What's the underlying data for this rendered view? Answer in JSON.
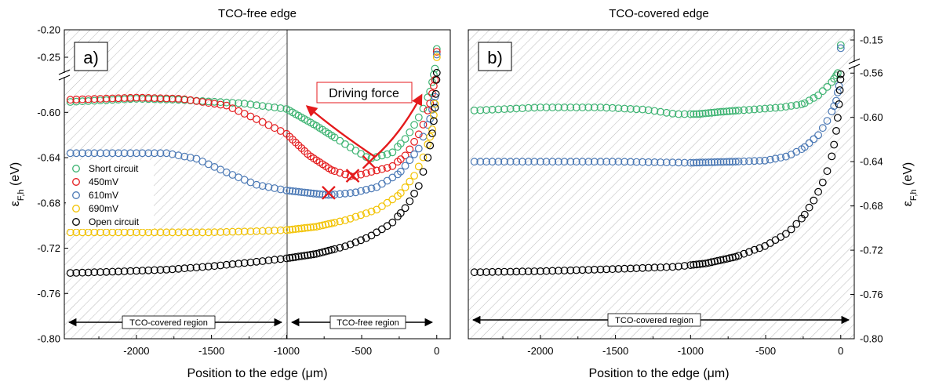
{
  "chart_data": [
    {
      "type": "scatter",
      "title": "TCO-free edge",
      "panel_label": "a)",
      "xlabel": "Position to the edge (μm)",
      "ylabel": "ε_F,h (eV)",
      "ylabel_main": "ε",
      "ylabel_sub": "F,h",
      "ylabel_unit": " (eV)",
      "xlim": [
        -2480,
        90
      ],
      "x_ticks": [
        -2000,
        -1500,
        -1000,
        -500,
        0
      ],
      "x_tick_labels": [
        "-2000",
        "-1500",
        "-1000",
        "-500",
        "0"
      ],
      "ylim": [
        -0.8,
        -0.2
      ],
      "y_axis_break": [
        -0.26,
        -0.57
      ],
      "y_ticks": [
        -0.2,
        -0.25,
        -0.6,
        -0.64,
        -0.68,
        -0.72,
        -0.76,
        -0.8
      ],
      "y_tick_labels": [
        "-0.20",
        "-0.25",
        "-0.60",
        "-0.64",
        "-0.68",
        "-0.72",
        "-0.76",
        "-0.80"
      ],
      "legend_position": "left",
      "shaded_region": "TCO-covered region",
      "regions": [
        {
          "label": "TCO-covered region",
          "from": -2480,
          "to": -1000
        },
        {
          "label": "TCO-free region",
          "from": -1000,
          "to": 0
        }
      ],
      "annotations": {
        "arrow_label": "Driving force",
        "markers": [
          {
            "x": -450,
            "y": -0.644
          },
          {
            "x": -560,
            "y": -0.656
          },
          {
            "x": -720,
            "y": -0.671
          }
        ]
      },
      "series": [
        {
          "name": "Short circuit",
          "color": "#3cb371",
          "points": [
            [
              -2480,
              -0.591
            ],
            [
              -2000,
              -0.588
            ],
            [
              -1700,
              -0.589
            ],
            [
              -1300,
              -0.592
            ],
            [
              -1000,
              -0.597
            ],
            [
              -800,
              -0.612
            ],
            [
              -600,
              -0.629
            ],
            [
              -450,
              -0.641
            ],
            [
              -300,
              -0.636
            ],
            [
              -200,
              -0.622
            ],
            [
              -100,
              -0.6
            ],
            [
              -40,
              -0.58
            ],
            [
              -10,
              -0.56
            ],
            [
              0,
              -0.235
            ]
          ]
        },
        {
          "name": "450mV",
          "color": "#e41a1c",
          "points": [
            [
              -2480,
              -0.589
            ],
            [
              -2000,
              -0.587
            ],
            [
              -1700,
              -0.588
            ],
            [
              -1400,
              -0.594
            ],
            [
              -1200,
              -0.606
            ],
            [
              -1000,
              -0.619
            ],
            [
              -850,
              -0.638
            ],
            [
              -700,
              -0.651
            ],
            [
              -560,
              -0.657
            ],
            [
              -450,
              -0.653
            ],
            [
              -300,
              -0.648
            ],
            [
              -200,
              -0.637
            ],
            [
              -100,
              -0.615
            ],
            [
              -40,
              -0.59
            ],
            [
              -10,
              -0.57
            ],
            [
              0,
              -0.24
            ]
          ]
        },
        {
          "name": "610mV",
          "color": "#4a78b5",
          "points": [
            [
              -2480,
              -0.636
            ],
            [
              -2000,
              -0.636
            ],
            [
              -1800,
              -0.636
            ],
            [
              -1600,
              -0.641
            ],
            [
              -1400,
              -0.653
            ],
            [
              -1200,
              -0.664
            ],
            [
              -1000,
              -0.669
            ],
            [
              -800,
              -0.672
            ],
            [
              -720,
              -0.673
            ],
            [
              -550,
              -0.671
            ],
            [
              -400,
              -0.666
            ],
            [
              -250,
              -0.654
            ],
            [
              -120,
              -0.632
            ],
            [
              -40,
              -0.604
            ],
            [
              -10,
              -0.585
            ],
            [
              0,
              -0.245
            ]
          ]
        },
        {
          "name": "690mV",
          "color": "#f2c200",
          "points": [
            [
              -2480,
              -0.706
            ],
            [
              -2000,
              -0.706
            ],
            [
              -1500,
              -0.706
            ],
            [
              -1200,
              -0.705
            ],
            [
              -1000,
              -0.704
            ],
            [
              -800,
              -0.701
            ],
            [
              -600,
              -0.695
            ],
            [
              -400,
              -0.686
            ],
            [
              -250,
              -0.673
            ],
            [
              -150,
              -0.656
            ],
            [
              -80,
              -0.637
            ],
            [
              -30,
              -0.615
            ],
            [
              -10,
              -0.59
            ],
            [
              0,
              -0.25
            ]
          ]
        },
        {
          "name": "Open circuit",
          "color": "#000000",
          "points": [
            [
              -2480,
              -0.742
            ],
            [
              -2200,
              -0.741
            ],
            [
              -1800,
              -0.739
            ],
            [
              -1500,
              -0.736
            ],
            [
              -1200,
              -0.732
            ],
            [
              -1000,
              -0.729
            ],
            [
              -800,
              -0.725
            ],
            [
              -600,
              -0.718
            ],
            [
              -450,
              -0.71
            ],
            [
              -300,
              -0.698
            ],
            [
              -200,
              -0.683
            ],
            [
              -120,
              -0.665
            ],
            [
              -60,
              -0.64
            ],
            [
              -25,
              -0.615
            ],
            [
              -8,
              -0.59
            ],
            [
              0,
              -0.565
            ]
          ]
        }
      ]
    },
    {
      "type": "scatter",
      "title": "TCO-covered edge",
      "panel_label": "b)",
      "xlabel": "Position to the edge (μm)",
      "ylabel": "ε_F,h (eV)",
      "ylabel_main": "ε",
      "ylabel_sub": "F,h",
      "ylabel_unit": " (eV)",
      "xlim": [
        -2480,
        90
      ],
      "x_ticks": [
        -2000,
        -1500,
        -1000,
        -500,
        0
      ],
      "x_tick_labels": [
        "-2000",
        "-1500",
        "-1000",
        "-500",
        "0"
      ],
      "ylim": [
        -0.8,
        -0.14
      ],
      "y_axis_break": [
        -0.17,
        -0.557
      ],
      "y_ticks": [
        -0.15,
        -0.56,
        -0.6,
        -0.64,
        -0.68,
        -0.72,
        -0.76,
        -0.8
      ],
      "y_tick_labels": [
        "-0.15",
        "-0.56",
        "-0.60",
        "-0.64",
        "-0.68",
        "-0.72",
        "-0.76",
        "-0.80"
      ],
      "y_axis_side": "right",
      "shaded_region": "TCO-covered region",
      "regions": [
        {
          "label": "TCO-covered region",
          "from": -2480,
          "to": 0
        }
      ],
      "series": [
        {
          "name": "Short circuit",
          "color": "#3cb371",
          "points": [
            [
              -2480,
              -0.594
            ],
            [
              -2000,
              -0.591
            ],
            [
              -1600,
              -0.591
            ],
            [
              -1300,
              -0.593
            ],
            [
              -1100,
              -0.597
            ],
            [
              -950,
              -0.597
            ],
            [
              -800,
              -0.595
            ],
            [
              -600,
              -0.593
            ],
            [
              -400,
              -0.591
            ],
            [
              -250,
              -0.588
            ],
            [
              -150,
              -0.58
            ],
            [
              -70,
              -0.57
            ],
            [
              -20,
              -0.56
            ],
            [
              0,
              -0.155
            ]
          ]
        },
        {
          "name": "610mV",
          "color": "#4a78b5",
          "points": [
            [
              -2480,
              -0.64
            ],
            [
              -2000,
              -0.64
            ],
            [
              -1500,
              -0.64
            ],
            [
              -1000,
              -0.641
            ],
            [
              -700,
              -0.64
            ],
            [
              -500,
              -0.639
            ],
            [
              -350,
              -0.635
            ],
            [
              -250,
              -0.628
            ],
            [
              -150,
              -0.616
            ],
            [
              -80,
              -0.601
            ],
            [
              -30,
              -0.585
            ],
            [
              -10,
              -0.57
            ],
            [
              0,
              -0.158
            ]
          ]
        },
        {
          "name": "Open circuit",
          "color": "#000000",
          "points": [
            [
              -2480,
              -0.74
            ],
            [
              -2000,
              -0.739
            ],
            [
              -1500,
              -0.737
            ],
            [
              -1100,
              -0.735
            ],
            [
              -900,
              -0.732
            ],
            [
              -700,
              -0.726
            ],
            [
              -500,
              -0.716
            ],
            [
              -350,
              -0.704
            ],
            [
              -250,
              -0.69
            ],
            [
              -170,
              -0.673
            ],
            [
              -100,
              -0.653
            ],
            [
              -55,
              -0.633
            ],
            [
              -25,
              -0.608
            ],
            [
              -10,
              -0.585
            ],
            [
              0,
              -0.561
            ]
          ]
        }
      ]
    }
  ]
}
